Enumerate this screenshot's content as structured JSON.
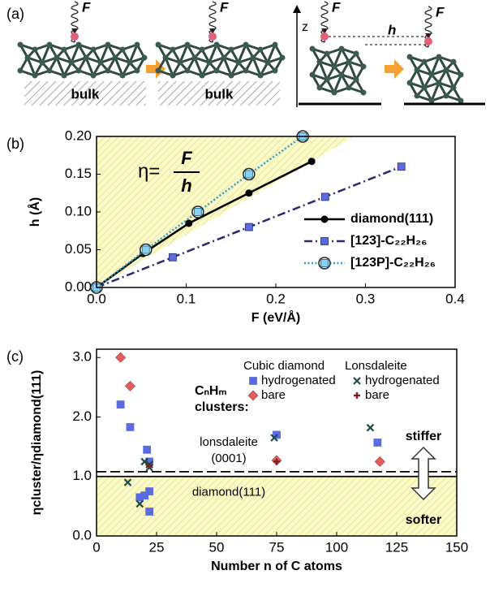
{
  "diagram": {
    "panel_label": "(a)",
    "force_label": "F",
    "bulk_label": "bulk",
    "z_label": "z",
    "h_label": "h"
  },
  "chart_data": [
    {
      "type": "line",
      "panel_label": "(b)",
      "xlabel": "F (eV/Å)",
      "ylabel": "h (Å)",
      "annotation": {
        "eta": "η=",
        "numerator": "F",
        "denominator": "h"
      },
      "xlim": [
        0,
        0.4
      ],
      "ylim": [
        0,
        0.2
      ],
      "xticks": [
        {
          "value": 0,
          "label": "0.0"
        },
        {
          "value": 0.1,
          "label": "0.1"
        },
        {
          "value": 0.2,
          "label": "0.2"
        },
        {
          "value": 0.3,
          "label": "0.3"
        },
        {
          "value": 0.4,
          "label": "0.4"
        }
      ],
      "yticks": [
        {
          "value": 0,
          "label": "0.00"
        },
        {
          "value": 0.05,
          "label": "0.05"
        },
        {
          "value": 0.1,
          "label": "0.10"
        },
        {
          "value": 0.15,
          "label": "0.15"
        },
        {
          "value": 0.2,
          "label": "0.20"
        }
      ],
      "series": [
        {
          "name": "diamond(111)",
          "color": "#000000",
          "line": "solid",
          "marker": "circle",
          "x": [
            0,
            0.052,
            0.103,
            0.17,
            0.24
          ],
          "values": [
            0,
            0.045,
            0.085,
            0.125,
            0.167
          ]
        },
        {
          "name": "[123]-C₂₂H₂₆",
          "color": "#2b2a6e",
          "line": "dashdot",
          "marker": "square",
          "x": [
            0,
            0.085,
            0.17,
            0.255,
            0.34
          ],
          "values": [
            0,
            0.04,
            0.08,
            0.12,
            0.16
          ]
        },
        {
          "name": "[123P]-C₂₂H₂₆",
          "color": "#2aa0d0",
          "line": "dotted",
          "marker": "ring",
          "x": [
            0,
            0.055,
            0.113,
            0.17,
            0.23
          ],
          "values": [
            0,
            0.05,
            0.1,
            0.15,
            0.2
          ]
        }
      ]
    },
    {
      "type": "scatter",
      "panel_label": "(c)",
      "xlabel": "Number n of C atoms",
      "ylabel": "ηcluster/ηdiamond(111)",
      "xlim": [
        0,
        150
      ],
      "ylim": [
        0,
        3.14
      ],
      "xticks": [
        0,
        25,
        50,
        75,
        100,
        125,
        150
      ],
      "yticks": [
        {
          "value": 0,
          "label": "0.0"
        },
        {
          "value": 1,
          "label": "1.0"
        },
        {
          "value": 2,
          "label": "2.0"
        },
        {
          "value": 3,
          "label": "3.0"
        }
      ],
      "legend_title": [
        "CₙHₘ",
        "clusters:"
      ],
      "legend_groups": [
        "Cubic diamond",
        "Lonsdaleite"
      ],
      "reference_lines": [
        {
          "label": [
            "lonsdaleite",
            "(0001)"
          ],
          "value": 1.08,
          "style": "dashed"
        },
        {
          "label": [
            "diamond(111)"
          ],
          "value": 1.0,
          "style": "solid"
        }
      ],
      "regions": [
        "stiffer",
        "softer"
      ],
      "series": [
        {
          "name": "hydrogenated",
          "color": "#5b6be0",
          "marker": "square",
          "x": [
            10,
            14,
            18,
            20,
            21,
            22,
            22,
            22,
            75,
            117
          ],
          "values": [
            2.21,
            1.83,
            0.65,
            0.68,
            1.45,
            1.25,
            0.75,
            0.41,
            1.7,
            1.57
          ]
        },
        {
          "name": "bare",
          "color": "#e06060",
          "marker": "diamond",
          "x": [
            10,
            14,
            75,
            118
          ],
          "values": [
            3.0,
            2.52,
            1.27,
            1.25
          ]
        },
        {
          "name": "hydrogenated",
          "color": "#1f4a4a",
          "marker": "x",
          "x": [
            13,
            18,
            20,
            22,
            22,
            74,
            114
          ],
          "values": [
            0.9,
            0.54,
            1.25,
            1.15,
            1.2,
            1.65,
            1.82
          ]
        },
        {
          "name": "bare",
          "color": "#7a2020",
          "marker": "plus",
          "x": [
            22,
            75
          ],
          "values": [
            1.18,
            1.25
          ]
        }
      ]
    }
  ]
}
